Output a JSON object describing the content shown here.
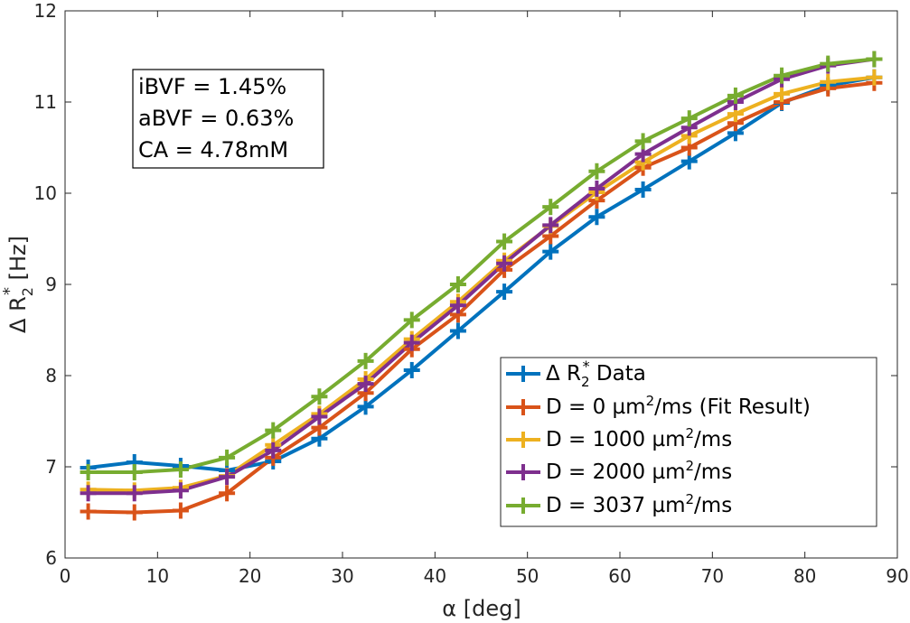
{
  "chart_data": {
    "type": "line",
    "title": "",
    "xlabel": "α [deg]",
    "ylabel_prefix": "Δ R",
    "ylabel_sub": "2",
    "ylabel_sup": "*",
    "ylabel_suffix": " [Hz]",
    "xlim": [
      0,
      90
    ],
    "ylim": [
      6,
      12
    ],
    "xticks": [
      "0",
      "10",
      "20",
      "30",
      "40",
      "50",
      "60",
      "70",
      "80",
      "90"
    ],
    "yticks": [
      "6",
      "7",
      "8",
      "9",
      "10",
      "11",
      "12"
    ],
    "x": [
      2.5,
      7.5,
      12.5,
      17.5,
      22.5,
      27.5,
      32.5,
      37.5,
      42.5,
      47.5,
      52.5,
      57.5,
      62.5,
      67.5,
      72.5,
      77.5,
      82.5,
      87.5
    ],
    "series": [
      {
        "name": "Δ R2* Data",
        "color": "#0072BD",
        "values": [
          6.99,
          7.05,
          7.01,
          6.96,
          7.06,
          7.31,
          7.66,
          8.06,
          8.49,
          8.92,
          9.36,
          9.74,
          10.04,
          10.35,
          10.66,
          10.99,
          11.18,
          11.27
        ]
      },
      {
        "name": "D = 0 µm²/ms (Fit Result)",
        "color": "#D95319",
        "values": [
          6.51,
          6.5,
          6.52,
          6.71,
          7.1,
          7.43,
          7.81,
          8.29,
          8.67,
          9.16,
          9.53,
          9.92,
          10.28,
          10.5,
          10.77,
          11.0,
          11.15,
          11.21
        ]
      },
      {
        "name": "D = 1000 µm²/ms",
        "color": "#EDB120",
        "values": [
          6.75,
          6.74,
          6.77,
          6.9,
          7.24,
          7.58,
          7.96,
          8.4,
          8.81,
          9.26,
          9.64,
          10.01,
          10.34,
          10.63,
          10.87,
          11.09,
          11.22,
          11.27
        ]
      },
      {
        "name": "D = 2000 µm²/ms",
        "color": "#7E2F8E",
        "values": [
          6.71,
          6.71,
          6.74,
          6.89,
          7.18,
          7.55,
          7.91,
          8.36,
          8.77,
          9.23,
          9.65,
          10.05,
          10.43,
          10.72,
          11.0,
          11.25,
          11.4,
          11.47
        ]
      },
      {
        "name": "D = 3037 µm²/ms",
        "color": "#77AC30",
        "values": [
          6.94,
          6.94,
          6.97,
          7.1,
          7.4,
          7.77,
          8.16,
          8.61,
          9.0,
          9.47,
          9.85,
          10.24,
          10.57,
          10.82,
          11.07,
          11.29,
          11.42,
          11.47
        ]
      }
    ],
    "legend": {
      "position": "bottom-right",
      "items": [
        {
          "prefix": "Δ R",
          "sub": "2",
          "sup": "*",
          "suffix": " Data"
        },
        {
          "prefix": "D = 0 µm",
          "sup": "2",
          "suffix": "/ms (Fit Result)"
        },
        {
          "prefix": "D = 1000 µm",
          "sup": "2",
          "suffix": "/ms"
        },
        {
          "prefix": "D = 2000 µm",
          "sup": "2",
          "suffix": "/ms"
        },
        {
          "prefix": "D = 3037 µm",
          "sup": "2",
          "suffix": "/ms"
        }
      ]
    },
    "annotation": {
      "position": "top-left",
      "lines": [
        "iBVF = 1.45%",
        "aBVF = 0.63%",
        "CA = 4.78mM"
      ]
    }
  }
}
